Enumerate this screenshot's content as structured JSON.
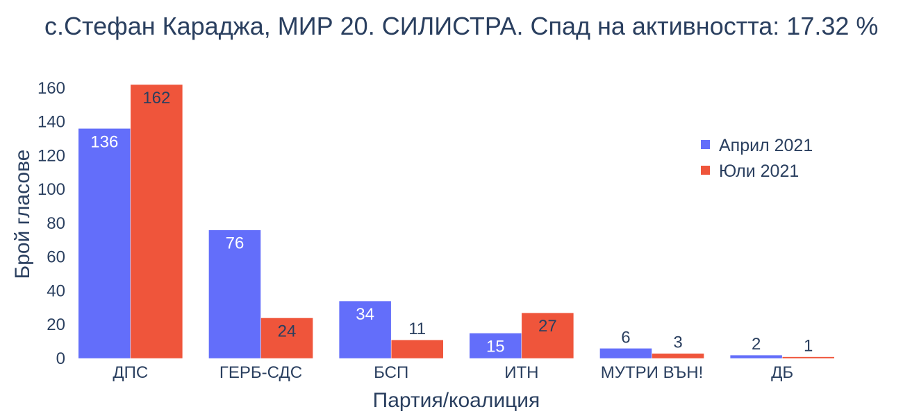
{
  "chart_data": {
    "type": "bar",
    "title": "с.Стефан Караджа, МИР 20. СИЛИСТРА. Спад на активността: 17.32 %",
    "xlabel": "Партия/коалиция",
    "ylabel": "Брой гласове",
    "categories": [
      "ДПС",
      "ГЕРБ-СДС",
      "БСП",
      "ИТН",
      "МУТРИ ВЪН!",
      "ДБ"
    ],
    "series": [
      {
        "name": "Април 2021",
        "color": "#636efa",
        "values": [
          136,
          76,
          34,
          15,
          6,
          2
        ]
      },
      {
        "name": "Юли 2021",
        "color": "#ef553b",
        "values": [
          162,
          24,
          11,
          27,
          3,
          1
        ]
      }
    ],
    "ylim": [
      0,
      164
    ],
    "yticks": [
      0,
      20,
      40,
      60,
      80,
      100,
      120,
      140,
      160
    ],
    "grid": false,
    "legend_position": "top-right"
  }
}
